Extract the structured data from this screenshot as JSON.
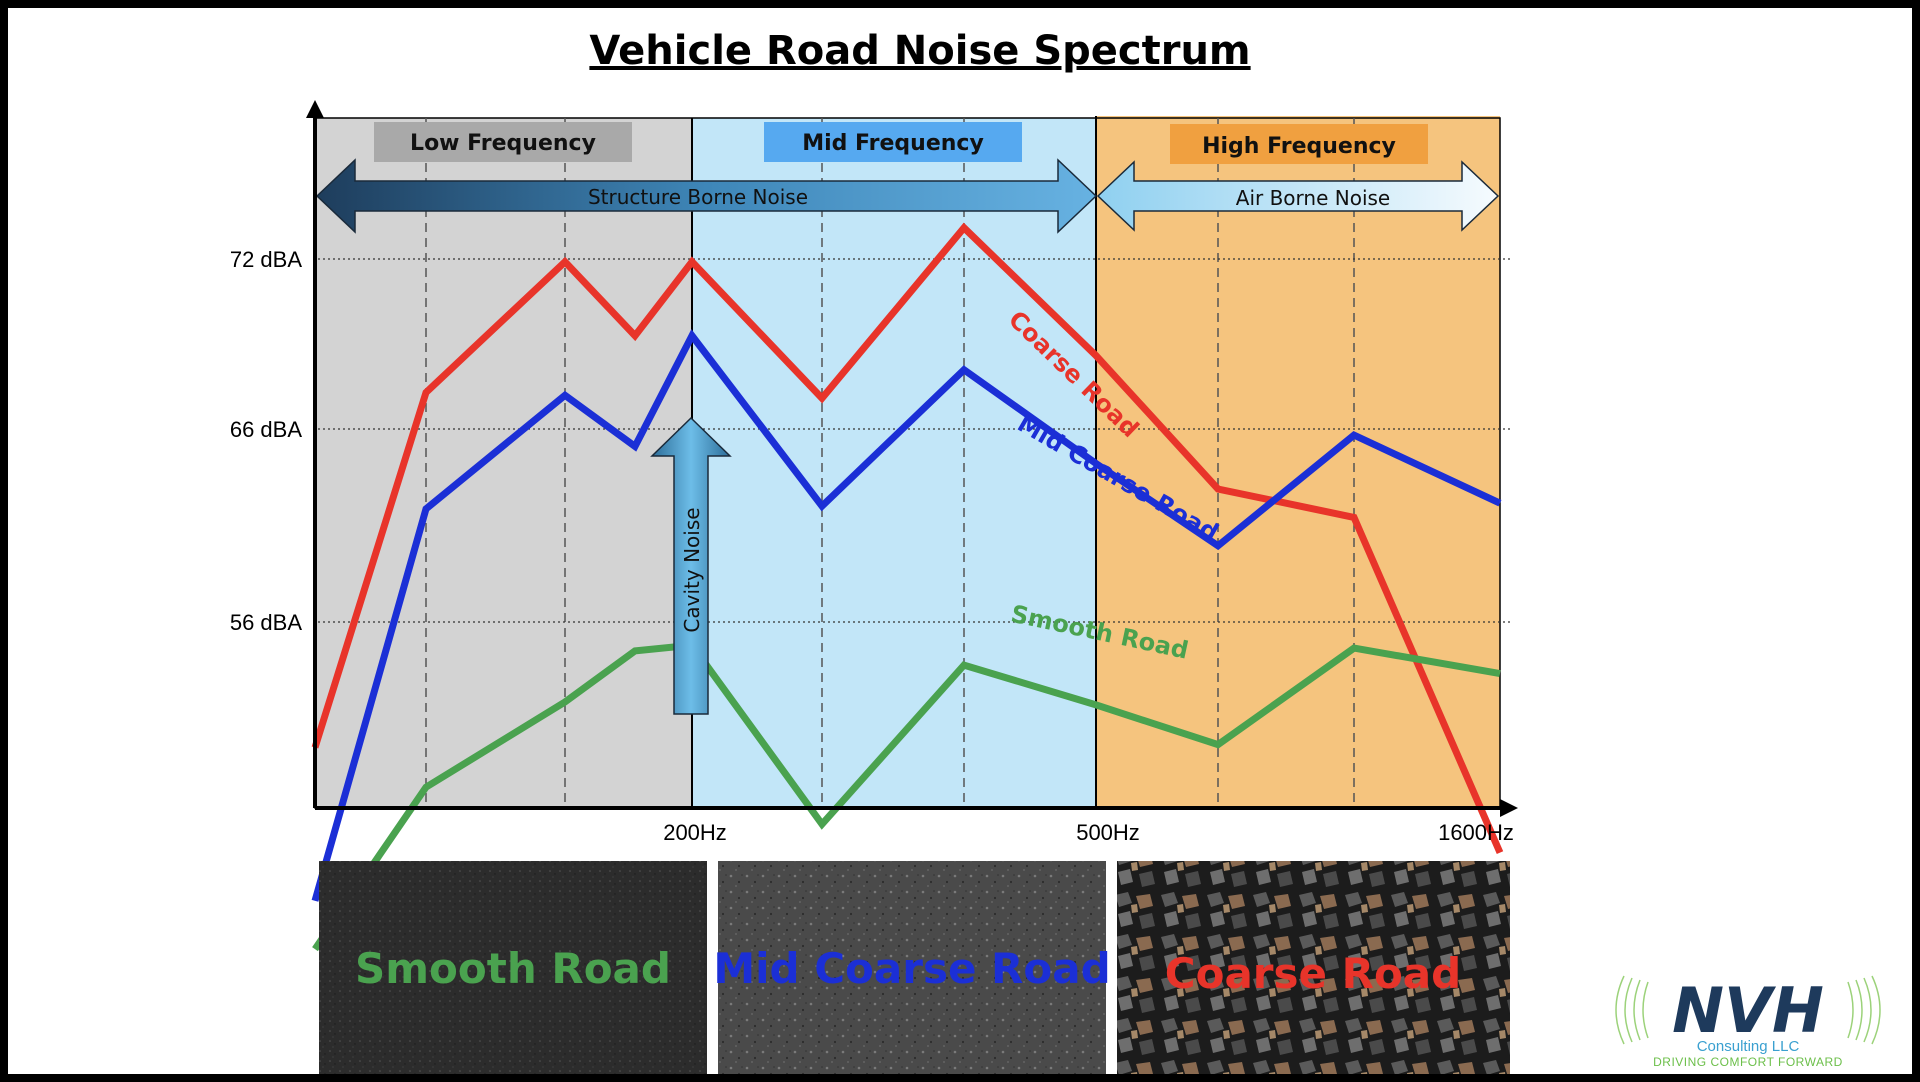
{
  "chart_data": {
    "type": "line",
    "title": "Vehicle Road Noise Spectrum",
    "xlabel": "",
    "ylabel": "",
    "x_tick_labels": [
      "200Hz",
      "500Hz",
      "1600Hz"
    ],
    "y_tick_labels": [
      "72 dBA",
      "66 dBA",
      "56 dBA"
    ],
    "grid": true,
    "bands": [
      {
        "label": "Low Frequency",
        "fill": "#d3d3d3",
        "label_bg": "#a9a9a9"
      },
      {
        "label": "Mid Frequency",
        "fill": "#c2e6f8",
        "label_bg": "#56a9f0"
      },
      {
        "label": "High Frequency",
        "fill": "#f5c47e",
        "label_bg": "#f0a040"
      }
    ],
    "annotations": {
      "structure_borne": "Structure Borne Noise",
      "air_borne": "Air Borne Noise",
      "cavity": "Cavity Noise"
    },
    "series": [
      {
        "name": "Coarse Road",
        "color": "#e8342a",
        "values": [
          54.8,
          67.3,
          71.9,
          69.3,
          71.9,
          67.1,
          73.1,
          68.6,
          63.9,
          62.9,
          51.1
        ]
      },
      {
        "name": "Mid Coarse Road",
        "color": "#1b2fd6",
        "values": [
          49.4,
          63.2,
          67.2,
          65.4,
          69.3,
          63.3,
          68.1,
          64.8,
          61.9,
          65.8,
          63.4
        ]
      },
      {
        "name": "Smooth Road",
        "color": "#4aa24f",
        "values": [
          47.7,
          53.4,
          56.4,
          58.2,
          58.4,
          52.1,
          57.7,
          56.3,
          54.9,
          58.3,
          57.4
        ]
      }
    ]
  },
  "photos": [
    {
      "label": "Smooth Road",
      "color": "#4aa24f"
    },
    {
      "label": "Mid Coarse Road",
      "color": "#1b2fd6"
    },
    {
      "label": "Coarse Road",
      "color": "#e8342a"
    }
  ],
  "logo": {
    "name": "NVH",
    "subtitle": "Consulting LLC",
    "tagline": "DRIVING COMFORT FORWARD"
  }
}
